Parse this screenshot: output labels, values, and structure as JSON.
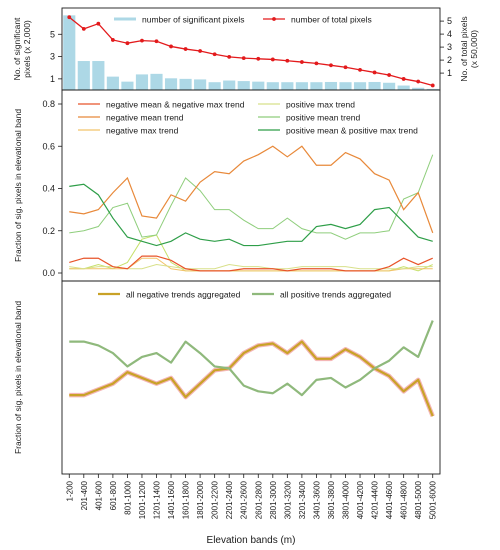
{
  "chart_data": [
    {
      "type": "bar",
      "categories": [
        "1-200",
        "201-400",
        "401-600",
        "601-800",
        "801-1000",
        "1001-1200",
        "1201-1400",
        "1401-1600",
        "1601-1800",
        "1801-2000",
        "2001-2200",
        "2201-2400",
        "2401-2600",
        "2601-2800",
        "2801-3000",
        "3001-3200",
        "3201-3400",
        "3401-3600",
        "3601-3800",
        "3801-4000",
        "4001-4200",
        "4201-4400",
        "4401-4600",
        "4601-4800",
        "4801-5000",
        "5001-6000"
      ],
      "ylabel": "No. of significant pixels (x 2,000)",
      "y2label": "No. of total pixels (x 50,000)",
      "yticks": [
        "1",
        "3",
        "5"
      ],
      "y2ticks": [
        "1",
        "2",
        "3",
        "4",
        "5"
      ],
      "legend": "top",
      "series": [
        {
          "name": "number of significant pixels",
          "color": "#add8e6",
          "axis": "left",
          "values": [
            6.7,
            2.6,
            2.6,
            1.2,
            0.75,
            1.4,
            1.45,
            1.05,
            1.0,
            0.95,
            0.7,
            0.85,
            0.8,
            0.75,
            0.7,
            0.7,
            0.7,
            0.7,
            0.72,
            0.7,
            0.7,
            0.72,
            0.65,
            0.4,
            0.2,
            0.1
          ]
        },
        {
          "name": "number of total pixels",
          "color": "#e31a1c",
          "axis": "right",
          "values": [
            5.3,
            4.4,
            4.8,
            3.55,
            3.3,
            3.5,
            3.45,
            3.05,
            2.85,
            2.7,
            2.45,
            2.25,
            2.15,
            2.1,
            2.05,
            1.95,
            1.85,
            1.75,
            1.6,
            1.45,
            1.25,
            1.05,
            0.85,
            0.55,
            0.35,
            0.05
          ]
        }
      ]
    },
    {
      "type": "line",
      "ylabel": "Fraction of sig. pixels in elevational band",
      "ylim": [
        0,
        0.8
      ],
      "yticks": [
        "0.0",
        "0.2",
        "0.4",
        "0.6",
        "0.8"
      ],
      "legend": "top",
      "series": [
        {
          "name": "negative mean & negative max trend",
          "color": "#e8542a",
          "width": 1.2,
          "values": [
            0.05,
            0.07,
            0.07,
            0.03,
            0.02,
            0.08,
            0.08,
            0.06,
            0.02,
            0.01,
            0.01,
            0.01,
            0.02,
            0.02,
            0.02,
            0.01,
            0.02,
            0.02,
            0.02,
            0.01,
            0.01,
            0.01,
            0.03,
            0.07,
            0.04,
            0.07
          ]
        },
        {
          "name": "positive max trend",
          "color": "#d8e08a",
          "width": 1.0,
          "values": [
            0.03,
            0.02,
            0.03,
            0.03,
            0.02,
            0.02,
            0.04,
            0.03,
            0.02,
            0.02,
            0.02,
            0.04,
            0.03,
            0.03,
            0.02,
            0.02,
            0.03,
            0.03,
            0.03,
            0.03,
            0.02,
            0.02,
            0.02,
            0.02,
            0.03,
            0.03
          ]
        },
        {
          "name": "negative mean trend",
          "color": "#e8893a",
          "width": 1.2,
          "values": [
            0.29,
            0.28,
            0.3,
            0.38,
            0.45,
            0.27,
            0.26,
            0.37,
            0.34,
            0.43,
            0.48,
            0.47,
            0.53,
            0.56,
            0.6,
            0.55,
            0.6,
            0.51,
            0.51,
            0.57,
            0.54,
            0.47,
            0.44,
            0.3,
            0.38,
            0.19
          ]
        },
        {
          "name": "positive mean trend",
          "color": "#8fce7c",
          "width": 1.0,
          "values": [
            0.19,
            0.2,
            0.22,
            0.31,
            0.33,
            0.17,
            0.18,
            0.32,
            0.45,
            0.39,
            0.3,
            0.3,
            0.25,
            0.21,
            0.21,
            0.26,
            0.21,
            0.19,
            0.19,
            0.16,
            0.19,
            0.19,
            0.2,
            0.35,
            0.38,
            0.56
          ]
        },
        {
          "name": "negative max trend",
          "color": "#f2c36a",
          "width": 1.0,
          "values": [
            0.02,
            0.02,
            0.02,
            0.02,
            0.02,
            0.07,
            0.07,
            0.02,
            0.01,
            0.01,
            0.01,
            0.01,
            0.01,
            0.01,
            0.01,
            0.01,
            0.01,
            0.01,
            0.01,
            0.01,
            0.01,
            0.01,
            0.01,
            0.02,
            0.02,
            0.02
          ]
        },
        {
          "name": "positive mean & positive max trend",
          "color": "#2e9e48",
          "width": 1.2,
          "values": [
            0.41,
            0.42,
            0.37,
            0.26,
            0.17,
            0.15,
            0.13,
            0.15,
            0.19,
            0.16,
            0.15,
            0.16,
            0.13,
            0.13,
            0.14,
            0.15,
            0.15,
            0.22,
            0.23,
            0.21,
            0.23,
            0.3,
            0.31,
            0.24,
            0.17,
            0.15
          ]
        },
        {
          "name": "",
          "color": "#c6e06a",
          "width": 1.0,
          "values": [
            0.02,
            0.02,
            0.04,
            0.02,
            0.05,
            0.16,
            0.18,
            0.05,
            0.01,
            0.01,
            0.01,
            0.01,
            0.01,
            0.01,
            0.01,
            0.01,
            0.01,
            0.01,
            0.01,
            0.01,
            0.01,
            0.01,
            0.01,
            0.03,
            0.01,
            0.04
          ]
        }
      ]
    },
    {
      "type": "line",
      "ylabel": "Fraction of sig. pixels in elevational band",
      "xlabel": "Elevation bands (m)",
      "ylim": [
        0,
        0.8
      ],
      "legend": "top",
      "series": [
        {
          "name": "all negative trends aggregated",
          "color": "#c9a227",
          "width": 2.2,
          "halo": "#f4b6b6",
          "values": [
            0.36,
            0.36,
            0.39,
            0.42,
            0.48,
            0.45,
            0.42,
            0.45,
            0.35,
            0.42,
            0.49,
            0.5,
            0.58,
            0.62,
            0.63,
            0.58,
            0.64,
            0.55,
            0.55,
            0.6,
            0.56,
            0.5,
            0.46,
            0.38,
            0.44,
            0.25
          ]
        },
        {
          "name": "all positive trends aggregated",
          "color": "#8fb97c",
          "width": 2.2,
          "values": [
            0.64,
            0.64,
            0.62,
            0.58,
            0.51,
            0.56,
            0.58,
            0.53,
            0.64,
            0.58,
            0.51,
            0.5,
            0.41,
            0.38,
            0.37,
            0.42,
            0.36,
            0.44,
            0.45,
            0.4,
            0.44,
            0.5,
            0.54,
            0.61,
            0.56,
            0.75
          ]
        }
      ]
    }
  ]
}
